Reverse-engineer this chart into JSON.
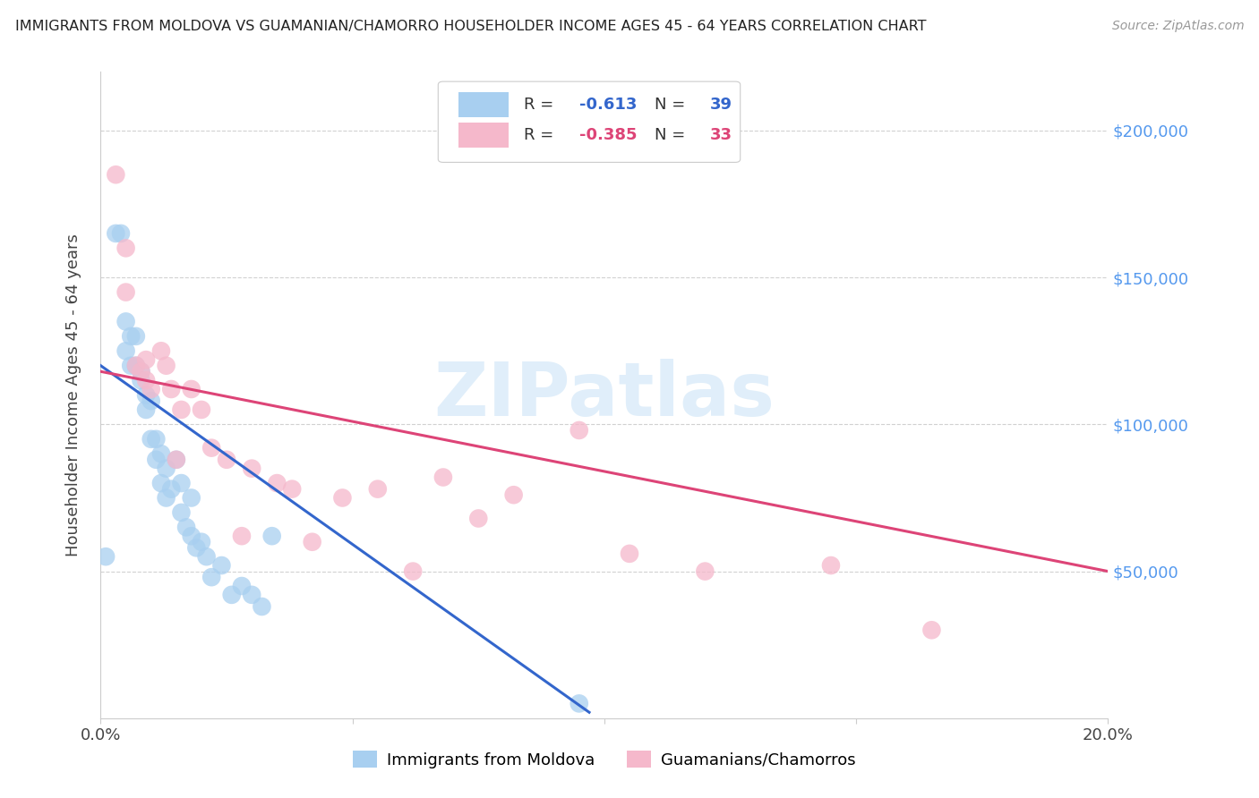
{
  "title": "IMMIGRANTS FROM MOLDOVA VS GUAMANIAN/CHAMORRO HOUSEHOLDER INCOME AGES 45 - 64 YEARS CORRELATION CHART",
  "source": "Source: ZipAtlas.com",
  "ylabel": "Householder Income Ages 45 - 64 years",
  "legend_label1": "Immigrants from Moldova",
  "legend_label2": "Guamanians/Chamorros",
  "R1": "-0.613",
  "N1": "39",
  "R2": "-0.385",
  "N2": "33",
  "color1": "#a8cff0",
  "color2": "#f5b8cb",
  "line_color1": "#3366cc",
  "line_color2": "#dd4477",
  "watermark_color": "#cce4f7",
  "xlim": [
    0.0,
    0.2
  ],
  "ylim": [
    0,
    220000
  ],
  "moldova_x": [
    0.001,
    0.003,
    0.004,
    0.005,
    0.005,
    0.006,
    0.006,
    0.007,
    0.007,
    0.008,
    0.008,
    0.009,
    0.009,
    0.01,
    0.01,
    0.011,
    0.011,
    0.012,
    0.012,
    0.013,
    0.013,
    0.014,
    0.015,
    0.016,
    0.016,
    0.017,
    0.018,
    0.018,
    0.019,
    0.02,
    0.021,
    0.022,
    0.024,
    0.026,
    0.028,
    0.03,
    0.032,
    0.034,
    0.095
  ],
  "moldova_y": [
    55000,
    165000,
    165000,
    125000,
    135000,
    130000,
    120000,
    130000,
    120000,
    115000,
    118000,
    110000,
    105000,
    108000,
    95000,
    95000,
    88000,
    90000,
    80000,
    85000,
    75000,
    78000,
    88000,
    80000,
    70000,
    65000,
    75000,
    62000,
    58000,
    60000,
    55000,
    48000,
    52000,
    42000,
    45000,
    42000,
    38000,
    62000,
    5000
  ],
  "guam_x": [
    0.003,
    0.005,
    0.005,
    0.007,
    0.008,
    0.009,
    0.009,
    0.01,
    0.012,
    0.013,
    0.014,
    0.015,
    0.016,
    0.018,
    0.02,
    0.022,
    0.025,
    0.028,
    0.03,
    0.035,
    0.038,
    0.042,
    0.048,
    0.055,
    0.062,
    0.068,
    0.075,
    0.082,
    0.095,
    0.105,
    0.12,
    0.145,
    0.165
  ],
  "guam_y": [
    185000,
    160000,
    145000,
    120000,
    118000,
    122000,
    115000,
    112000,
    125000,
    120000,
    112000,
    88000,
    105000,
    112000,
    105000,
    92000,
    88000,
    62000,
    85000,
    80000,
    78000,
    60000,
    75000,
    78000,
    50000,
    82000,
    68000,
    76000,
    98000,
    56000,
    50000,
    52000,
    30000
  ],
  "mol_line_x0": 0.0,
  "mol_line_x1": 0.097,
  "mol_line_y0": 120000,
  "mol_line_y1": 2000,
  "gm_line_x0": 0.0,
  "gm_line_x1": 0.2,
  "gm_line_y0": 118000,
  "gm_line_y1": 50000,
  "ytick_labels_right": [
    "$50,000",
    "$100,000",
    "$150,000",
    "$200,000"
  ]
}
